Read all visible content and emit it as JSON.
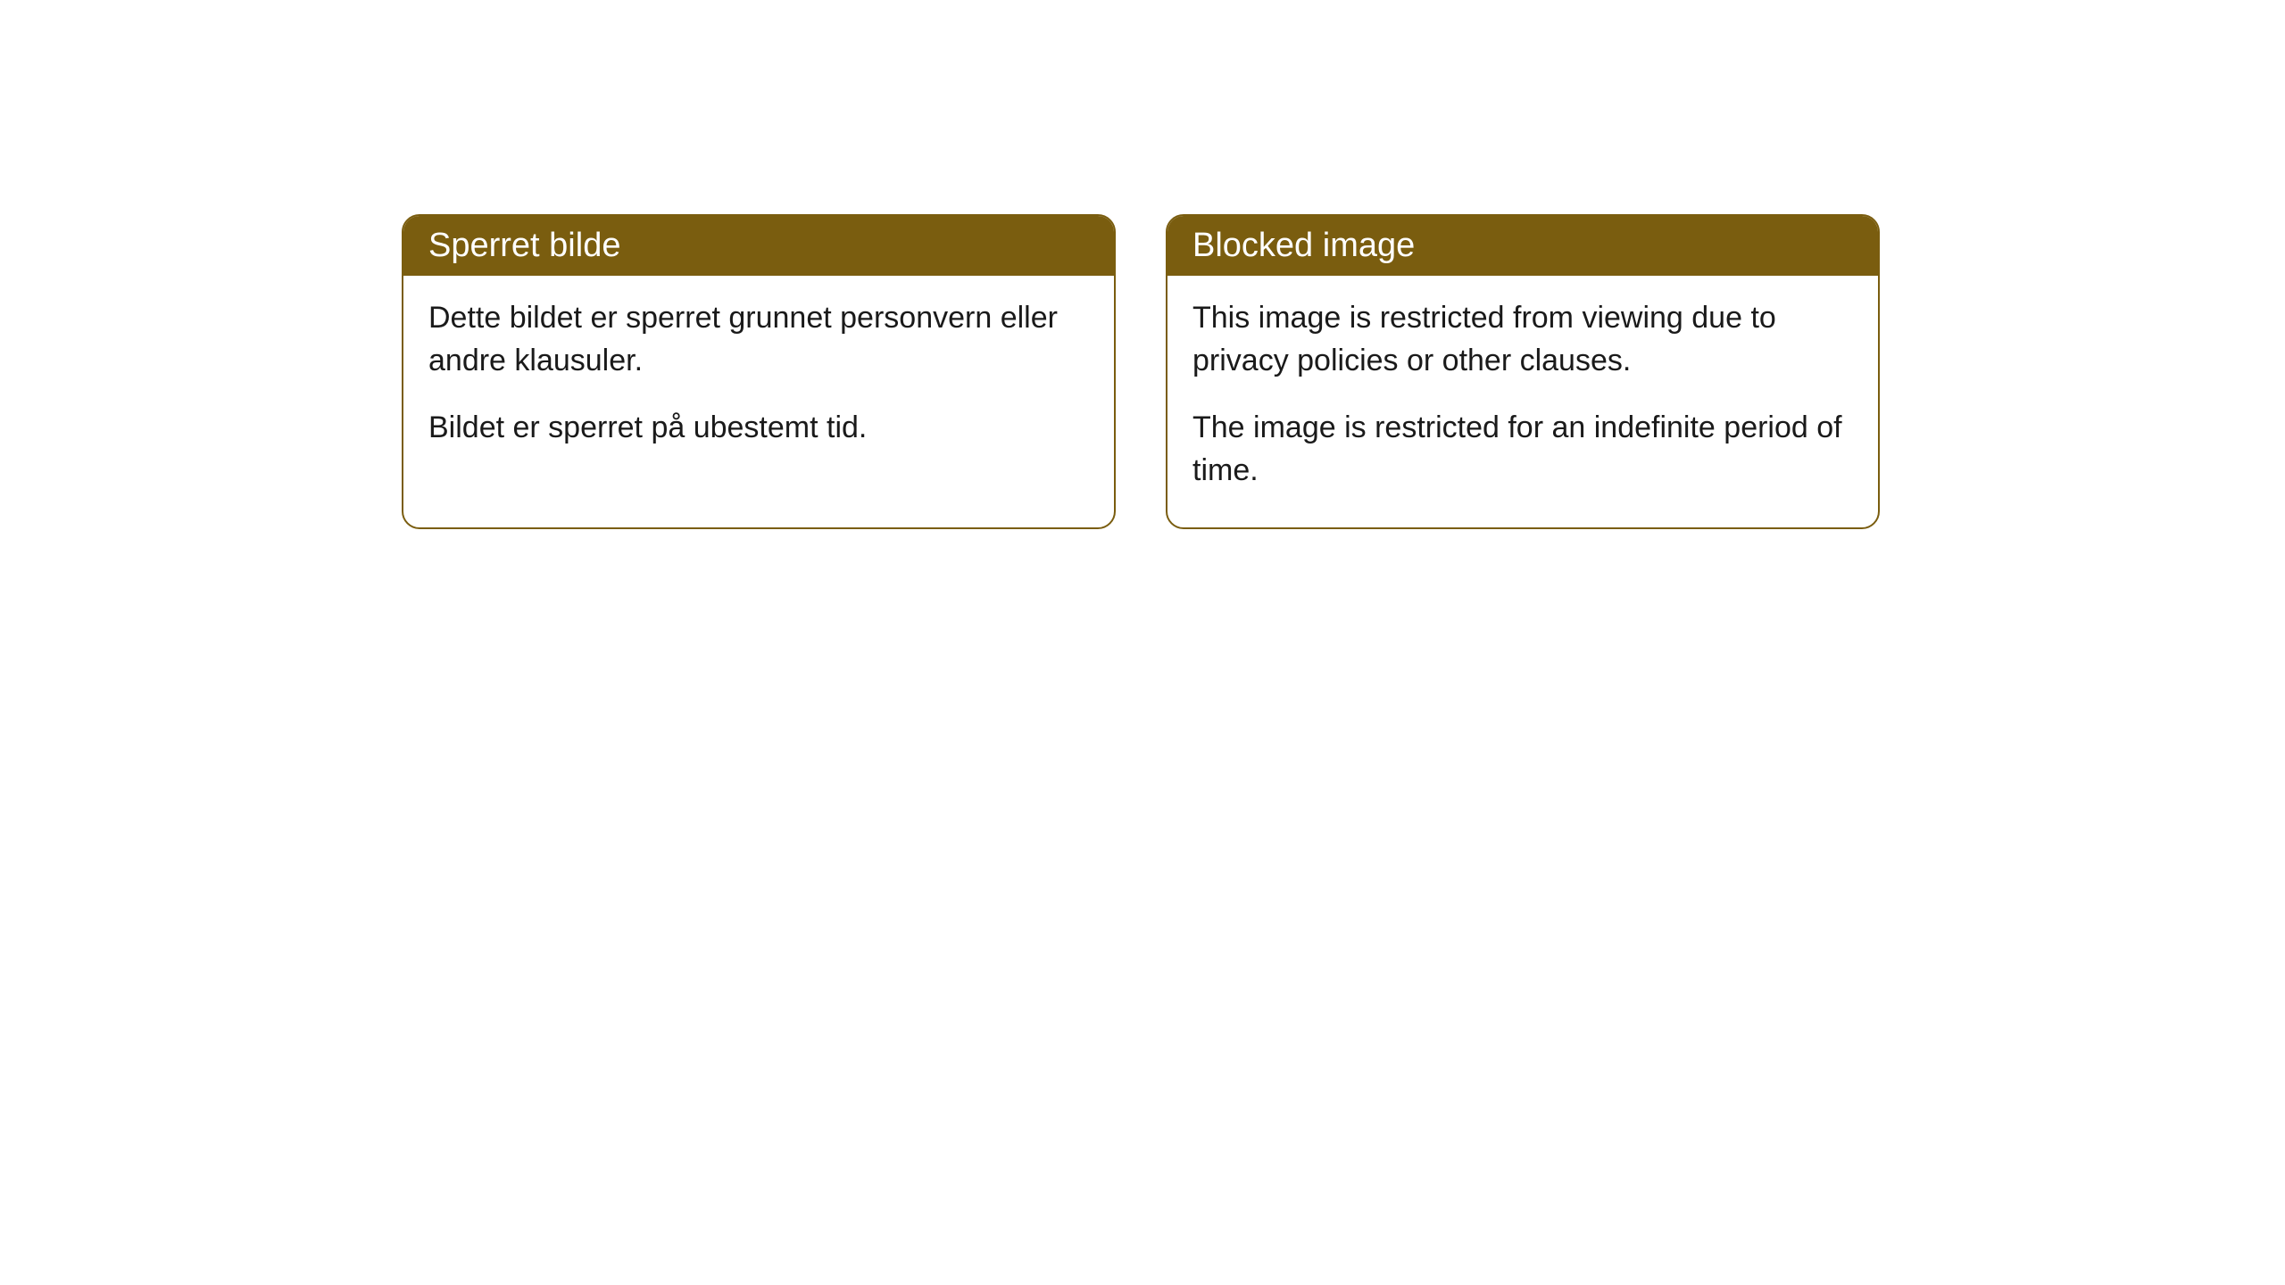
{
  "cards": {
    "left": {
      "title": "Sperret bilde",
      "paragraph1": "Dette bildet er sperret grunnet personvern eller andre klausuler.",
      "paragraph2": "Bildet er sperret på ubestemt tid."
    },
    "right": {
      "title": "Blocked image",
      "paragraph1": "This image is restricted from viewing due to privacy policies or other clauses.",
      "paragraph2": "The image is restricted for an indefinite period of time."
    }
  },
  "style": {
    "header_bg_color": "#7a5d0f",
    "header_text_color": "#ffffff",
    "border_color": "#7a5d0f",
    "body_text_color": "#1a1a1a",
    "background_color": "#ffffff",
    "border_radius": 20,
    "header_fontsize": 38,
    "body_fontsize": 34
  }
}
